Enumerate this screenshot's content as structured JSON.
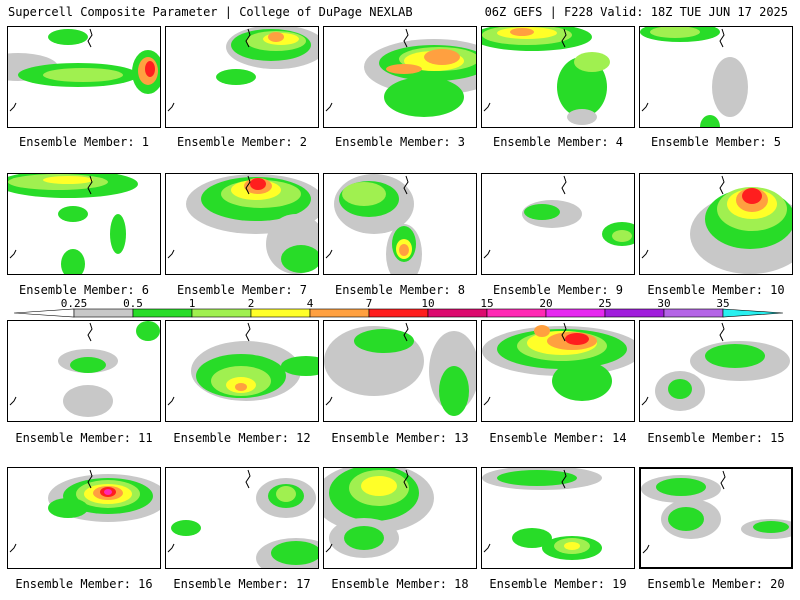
{
  "header": {
    "title_left": "Supercell Composite Parameter | College of DuPage NEXLAB",
    "title_right": "06Z GEFS | F228 Valid: 18Z TUE JUN 17 2025"
  },
  "colorbar": {
    "levels": [
      {
        "label": "0.25",
        "color": "#c8c8c8"
      },
      {
        "label": "0.5",
        "color": "#28dc28"
      },
      {
        "label": "1",
        "color": "#a0f050"
      },
      {
        "label": "2",
        "color": "#ffff28"
      },
      {
        "label": "4",
        "color": "#ffa040"
      },
      {
        "label": "7",
        "color": "#ff1e1e"
      },
      {
        "label": "10",
        "color": "#dc0a6e"
      },
      {
        "label": "15",
        "color": "#ff28b4"
      },
      {
        "label": "20",
        "color": "#e628f0"
      },
      {
        "label": "25",
        "color": "#a01edc"
      },
      {
        "label": "30",
        "color": "#b464e6"
      },
      {
        "label": "35",
        "color": "#28f0f0"
      }
    ],
    "low_color": "#ffffff",
    "high_color": "#28f0f0"
  },
  "panels": [
    {
      "label": "Ensemble Member: 1"
    },
    {
      "label": "Ensemble Member: 2"
    },
    {
      "label": "Ensemble Member: 3"
    },
    {
      "label": "Ensemble Member: 4"
    },
    {
      "label": "Ensemble Member: 5"
    },
    {
      "label": "Ensemble Member: 6"
    },
    {
      "label": "Ensemble Member: 7"
    },
    {
      "label": "Ensemble Member: 8"
    },
    {
      "label": "Ensemble Member: 9"
    },
    {
      "label": "Ensemble Member: 10"
    },
    {
      "label": "Ensemble Member: 11"
    },
    {
      "label": "Ensemble Member: 12"
    },
    {
      "label": "Ensemble Member: 13"
    },
    {
      "label": "Ensemble Member: 14"
    },
    {
      "label": "Ensemble Member: 15"
    },
    {
      "label": "Ensemble Member: 16"
    },
    {
      "label": "Ensemble Member: 17"
    },
    {
      "label": "Ensemble Member: 18"
    },
    {
      "label": "Ensemble Member: 19"
    },
    {
      "label": "Ensemble Member: 20"
    }
  ]
}
